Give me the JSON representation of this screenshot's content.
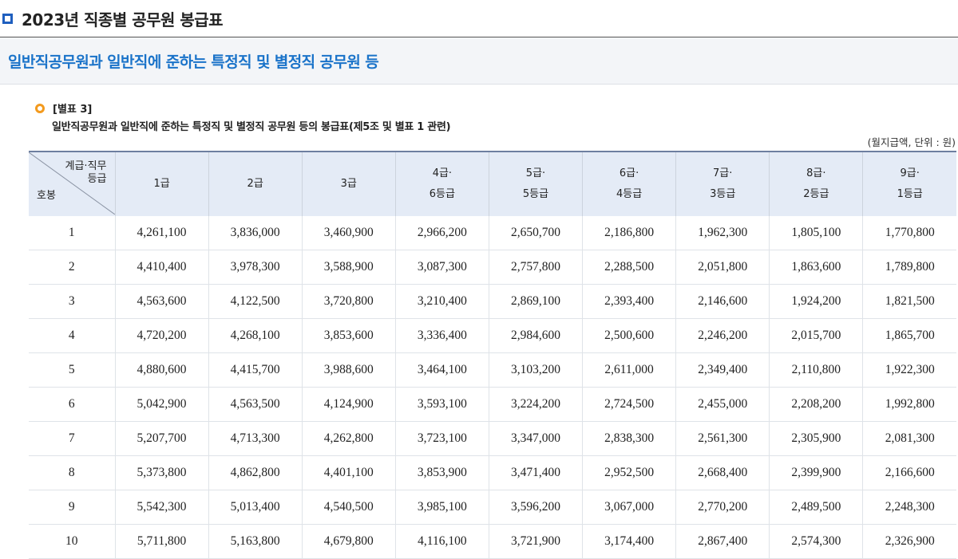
{
  "page_title": "2023년 직종별 공무원 봉급표",
  "section_title": "일반직공무원과 일반직에 준하는 특정직 및 별정직 공무원 등",
  "table_ref": "[별표 3]",
  "table_desc": "일반직공무원과 일반직에 준하는 특정직 및 별정직 공무원 등의 봉급표(제5조 및 별표 1 관련)",
  "unit_note": "(월지급액, 단위 : 원)",
  "corner": {
    "top_line1": "계급·직무",
    "top_line2": "등급",
    "bottom": "호봉"
  },
  "columns": [
    {
      "line1": "1급",
      "line2": ""
    },
    {
      "line1": "2급",
      "line2": ""
    },
    {
      "line1": "3급",
      "line2": ""
    },
    {
      "line1": "4급·",
      "line2": "6등급"
    },
    {
      "line1": "5급·",
      "line2": "5등급"
    },
    {
      "line1": "6급·",
      "line2": "4등급"
    },
    {
      "line1": "7급·",
      "line2": "3등급"
    },
    {
      "line1": "8급·",
      "line2": "2등급"
    },
    {
      "line1": "9급·",
      "line2": "1등급"
    }
  ],
  "rows": [
    {
      "step": "1",
      "values": [
        "4,261,100",
        "3,836,000",
        "3,460,900",
        "2,966,200",
        "2,650,700",
        "2,186,800",
        "1,962,300",
        "1,805,100",
        "1,770,800"
      ]
    },
    {
      "step": "2",
      "values": [
        "4,410,400",
        "3,978,300",
        "3,588,900",
        "3,087,300",
        "2,757,800",
        "2,288,500",
        "2,051,800",
        "1,863,600",
        "1,789,800"
      ]
    },
    {
      "step": "3",
      "values": [
        "4,563,600",
        "4,122,500",
        "3,720,800",
        "3,210,400",
        "2,869,100",
        "2,393,400",
        "2,146,600",
        "1,924,200",
        "1,821,500"
      ]
    },
    {
      "step": "4",
      "values": [
        "4,720,200",
        "4,268,100",
        "3,853,600",
        "3,336,400",
        "2,984,600",
        "2,500,600",
        "2,246,200",
        "2,015,700",
        "1,865,700"
      ]
    },
    {
      "step": "5",
      "values": [
        "4,880,600",
        "4,415,700",
        "3,988,600",
        "3,464,100",
        "3,103,200",
        "2,611,000",
        "2,349,400",
        "2,110,800",
        "1,922,300"
      ]
    },
    {
      "step": "6",
      "values": [
        "5,042,900",
        "4,563,500",
        "4,124,900",
        "3,593,100",
        "3,224,200",
        "2,724,500",
        "2,455,000",
        "2,208,200",
        "1,992,800"
      ]
    },
    {
      "step": "7",
      "values": [
        "5,207,700",
        "4,713,300",
        "4,262,800",
        "3,723,100",
        "3,347,000",
        "2,838,300",
        "2,561,300",
        "2,305,900",
        "2,081,300"
      ]
    },
    {
      "step": "8",
      "values": [
        "5,373,800",
        "4,862,800",
        "4,401,100",
        "3,853,900",
        "3,471,400",
        "2,952,500",
        "2,668,400",
        "2,399,900",
        "2,166,600"
      ]
    },
    {
      "step": "9",
      "values": [
        "5,542,300",
        "5,013,400",
        "4,540,500",
        "3,985,100",
        "3,596,200",
        "3,067,000",
        "2,770,200",
        "2,489,500",
        "2,248,300"
      ]
    },
    {
      "step": "10",
      "values": [
        "5,711,800",
        "5,163,800",
        "4,679,800",
        "4,116,100",
        "3,721,900",
        "3,174,400",
        "2,867,400",
        "2,574,300",
        "2,326,900"
      ]
    }
  ],
  "colors": {
    "title_square": "#1f5fbf",
    "section_title": "#1a73c9",
    "bullet": "#f39a1e",
    "header_bg": "#e4ebf6"
  }
}
